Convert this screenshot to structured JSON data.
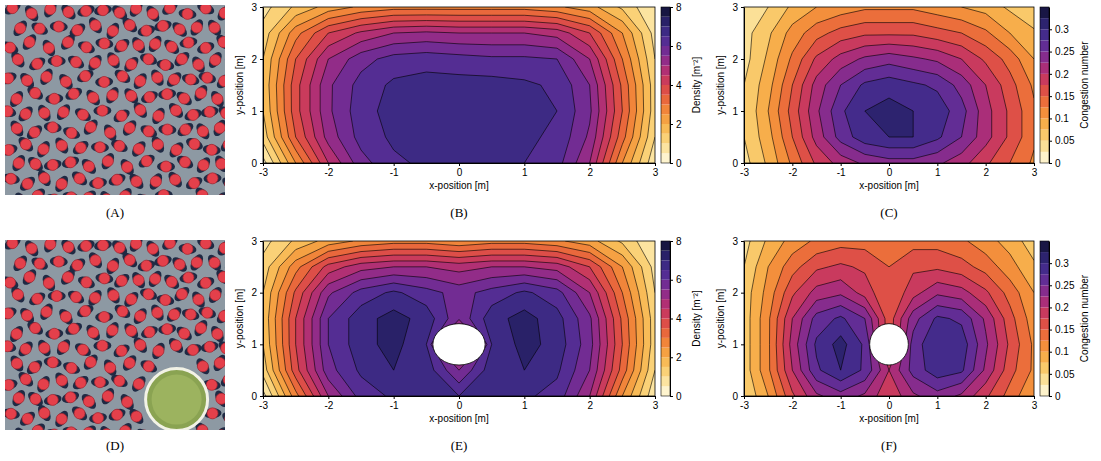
{
  "chart_data": [
    {
      "type": "contour",
      "panel": "(B)",
      "xlabel": "x-position [m]",
      "ylabel": "y-position [m]",
      "xlim": [
        -3,
        3
      ],
      "ylim": [
        0,
        3
      ],
      "xticks": [
        -3,
        -2,
        -1,
        0,
        1,
        2,
        3
      ],
      "yticks": [
        0,
        1,
        2,
        3
      ],
      "x": [
        -3,
        -2.5,
        -2,
        -1.5,
        -1,
        -0.5,
        0,
        0.5,
        1,
        1.5,
        2,
        2.5,
        3
      ],
      "y": [
        0,
        0.5,
        1,
        1.5,
        2,
        2.5,
        3
      ],
      "cells": [
        [
          0.3,
          2.5,
          4.5,
          5.8,
          6.4,
          6.6,
          6.6,
          6.6,
          6.5,
          6.2,
          5.0,
          2.5,
          0.6
        ],
        [
          1.2,
          3.5,
          5.2,
          6.2,
          6.6,
          6.7,
          6.7,
          6.7,
          6.6,
          6.4,
          5.4,
          3.2,
          1.0
        ],
        [
          1.5,
          3.8,
          5.4,
          6.3,
          6.7,
          6.8,
          6.8,
          6.8,
          6.7,
          6.5,
          5.6,
          3.5,
          1.2
        ],
        [
          1.6,
          3.8,
          5.4,
          6.2,
          6.6,
          6.7,
          6.7,
          6.7,
          6.6,
          6.4,
          5.5,
          3.4,
          1.2
        ],
        [
          1.5,
          3.5,
          5.0,
          5.8,
          6.2,
          6.3,
          6.2,
          6.1,
          6.1,
          6.0,
          5.0,
          3.0,
          1.0
        ],
        [
          1.2,
          2.8,
          4.0,
          4.6,
          5.0,
          5.1,
          5.0,
          5.0,
          5.0,
          4.8,
          4.0,
          2.5,
          0.8
        ],
        [
          0.8,
          1.6,
          2.2,
          2.6,
          2.8,
          2.8,
          2.8,
          2.8,
          2.8,
          2.6,
          2.2,
          1.4,
          0.5
        ]
      ],
      "levels": [
        0.5,
        1,
        1.5,
        2,
        2.5,
        3,
        3.5,
        4,
        4.5,
        5,
        5.5,
        6,
        6.5,
        7,
        7.5
      ],
      "colorbar_label": "Density [m⁻²]",
      "colorbar_range": [
        0,
        8
      ],
      "colorbar_ticks": [
        0,
        2,
        4,
        6,
        8
      ]
    },
    {
      "type": "contour",
      "panel": "(C)",
      "xlabel": "x-position [m]",
      "ylabel": "y-position [m]",
      "xlim": [
        -3,
        3
      ],
      "ylim": [
        0,
        3
      ],
      "xticks": [
        -3,
        -2,
        -1,
        0,
        1,
        2,
        3
      ],
      "yticks": [
        0,
        1,
        2,
        3
      ],
      "x": [
        -3,
        -2.5,
        -2,
        -1.5,
        -1,
        -0.5,
        0,
        0.5,
        1,
        1.5,
        2,
        2.5,
        3
      ],
      "y": [
        0,
        0.5,
        1,
        1.5,
        2,
        2.5,
        3
      ],
      "cells": [
        [
          0.04,
          0.08,
          0.13,
          0.18,
          0.21,
          0.23,
          0.24,
          0.24,
          0.23,
          0.21,
          0.18,
          0.15,
          0.12
        ],
        [
          0.05,
          0.09,
          0.15,
          0.21,
          0.26,
          0.29,
          0.3,
          0.3,
          0.28,
          0.25,
          0.21,
          0.17,
          0.13
        ],
        [
          0.05,
          0.1,
          0.16,
          0.22,
          0.27,
          0.3,
          0.31,
          0.3,
          0.29,
          0.26,
          0.21,
          0.17,
          0.13
        ],
        [
          0.05,
          0.09,
          0.15,
          0.21,
          0.25,
          0.28,
          0.29,
          0.28,
          0.27,
          0.24,
          0.2,
          0.16,
          0.12
        ],
        [
          0.04,
          0.08,
          0.13,
          0.18,
          0.21,
          0.23,
          0.24,
          0.23,
          0.22,
          0.2,
          0.17,
          0.14,
          0.1
        ],
        [
          0.04,
          0.07,
          0.11,
          0.14,
          0.16,
          0.17,
          0.17,
          0.17,
          0.16,
          0.15,
          0.13,
          0.1,
          0.08
        ],
        [
          0.03,
          0.05,
          0.08,
          0.1,
          0.11,
          0.12,
          0.12,
          0.12,
          0.11,
          0.1,
          0.09,
          0.07,
          0.05
        ]
      ],
      "levels": [
        0.025,
        0.05,
        0.075,
        0.1,
        0.125,
        0.15,
        0.175,
        0.2,
        0.225,
        0.25,
        0.275,
        0.3,
        0.325
      ],
      "colorbar_label": "Congestion number",
      "colorbar_range": [
        0,
        0.35
      ],
      "colorbar_ticks": [
        0,
        0.05,
        0.1,
        0.15,
        0.2,
        0.25,
        0.3
      ]
    },
    {
      "type": "contour",
      "panel": "(E)",
      "xlabel": "x-position [m]",
      "ylabel": "y-position [m]",
      "xlim": [
        -3,
        3
      ],
      "ylim": [
        0,
        3
      ],
      "xticks": [
        -3,
        -2,
        -1,
        0,
        1,
        2,
        3
      ],
      "yticks": [
        0,
        1,
        2,
        3
      ],
      "x": [
        -3,
        -2.5,
        -2,
        -1.5,
        -1,
        -0.5,
        0,
        0.5,
        1,
        1.5,
        2,
        2.5,
        3
      ],
      "y": [
        0,
        0.5,
        1,
        1.5,
        2,
        2.5,
        3
      ],
      "cells": [
        [
          0.3,
          2.8,
          5.0,
          6.2,
          6.6,
          6.6,
          6.5,
          6.6,
          6.6,
          6.3,
          5.0,
          2.5,
          0.6
        ],
        [
          1.2,
          3.8,
          5.8,
          6.6,
          7.0,
          6.8,
          5.5,
          6.8,
          7.0,
          6.6,
          5.5,
          3.3,
          1.0
        ],
        [
          1.5,
          4.0,
          6.0,
          6.8,
          7.2,
          6.5,
          3.0,
          6.5,
          7.2,
          6.8,
          5.7,
          3.5,
          1.2
        ],
        [
          1.6,
          4.0,
          6.0,
          6.8,
          7.2,
          6.8,
          5.6,
          6.8,
          7.2,
          6.7,
          5.6,
          3.4,
          1.2
        ],
        [
          1.5,
          3.6,
          5.4,
          6.2,
          6.6,
          6.2,
          5.8,
          6.2,
          6.6,
          6.2,
          5.0,
          3.0,
          1.0
        ],
        [
          1.2,
          2.8,
          4.2,
          4.8,
          5.0,
          5.0,
          4.8,
          5.0,
          5.0,
          4.8,
          4.0,
          2.5,
          0.8
        ],
        [
          0.8,
          1.6,
          2.2,
          2.6,
          2.8,
          2.8,
          2.6,
          2.8,
          2.8,
          2.6,
          2.2,
          1.4,
          0.5
        ]
      ],
      "levels": [
        0.5,
        1,
        1.5,
        2,
        2.5,
        3,
        3.5,
        4,
        4.5,
        5,
        5.5,
        6,
        6.5,
        7,
        7.5
      ],
      "obstacle": {
        "x": 0,
        "y": 1,
        "r": 0.4
      },
      "colorbar_label": "Density [m⁻²]",
      "colorbar_range": [
        0,
        8
      ],
      "colorbar_ticks": [
        0,
        2,
        4,
        6,
        8
      ]
    },
    {
      "type": "contour",
      "panel": "(F)",
      "xlabel": "x-position [m]",
      "ylabel": "y-position [m]",
      "xlim": [
        -3,
        3
      ],
      "ylim": [
        0,
        3
      ],
      "xticks": [
        -3,
        -2,
        -1,
        0,
        1,
        2,
        3
      ],
      "yticks": [
        0,
        1,
        2,
        3
      ],
      "x": [
        -3,
        -2.5,
        -2,
        -1.5,
        -1,
        -0.5,
        0,
        0.5,
        1,
        1.5,
        2,
        2.5,
        3
      ],
      "y": [
        0,
        0.5,
        1,
        1.5,
        2,
        2.5,
        3
      ],
      "cells": [
        [
          0.05,
          0.1,
          0.17,
          0.22,
          0.24,
          0.22,
          0.18,
          0.22,
          0.24,
          0.22,
          0.18,
          0.14,
          0.1
        ],
        [
          0.06,
          0.12,
          0.2,
          0.27,
          0.3,
          0.27,
          0.2,
          0.26,
          0.29,
          0.28,
          0.22,
          0.16,
          0.12
        ],
        [
          0.06,
          0.12,
          0.21,
          0.28,
          0.31,
          0.27,
          0.16,
          0.26,
          0.3,
          0.29,
          0.23,
          0.17,
          0.12
        ],
        [
          0.06,
          0.12,
          0.2,
          0.26,
          0.28,
          0.25,
          0.16,
          0.24,
          0.28,
          0.27,
          0.22,
          0.16,
          0.11
        ],
        [
          0.06,
          0.11,
          0.17,
          0.21,
          0.22,
          0.19,
          0.15,
          0.19,
          0.22,
          0.21,
          0.18,
          0.14,
          0.1
        ],
        [
          0.05,
          0.1,
          0.14,
          0.17,
          0.18,
          0.17,
          0.15,
          0.17,
          0.17,
          0.16,
          0.14,
          0.11,
          0.08
        ],
        [
          0.04,
          0.08,
          0.11,
          0.13,
          0.14,
          0.14,
          0.13,
          0.14,
          0.14,
          0.13,
          0.11,
          0.09,
          0.06
        ]
      ],
      "levels": [
        0.025,
        0.05,
        0.075,
        0.1,
        0.125,
        0.15,
        0.175,
        0.2,
        0.225,
        0.25,
        0.275,
        0.3,
        0.325
      ],
      "obstacle": {
        "x": 0,
        "y": 1,
        "r": 0.4
      },
      "colorbar_label": "Congestion number",
      "colorbar_range": [
        0,
        0.35
      ],
      "colorbar_ticks": [
        0,
        0.05,
        0.1,
        0.15,
        0.2,
        0.25,
        0.3
      ]
    }
  ],
  "photos": [
    {
      "panel": "(A)"
    },
    {
      "panel": "(D)",
      "obstacle": true
    }
  ]
}
